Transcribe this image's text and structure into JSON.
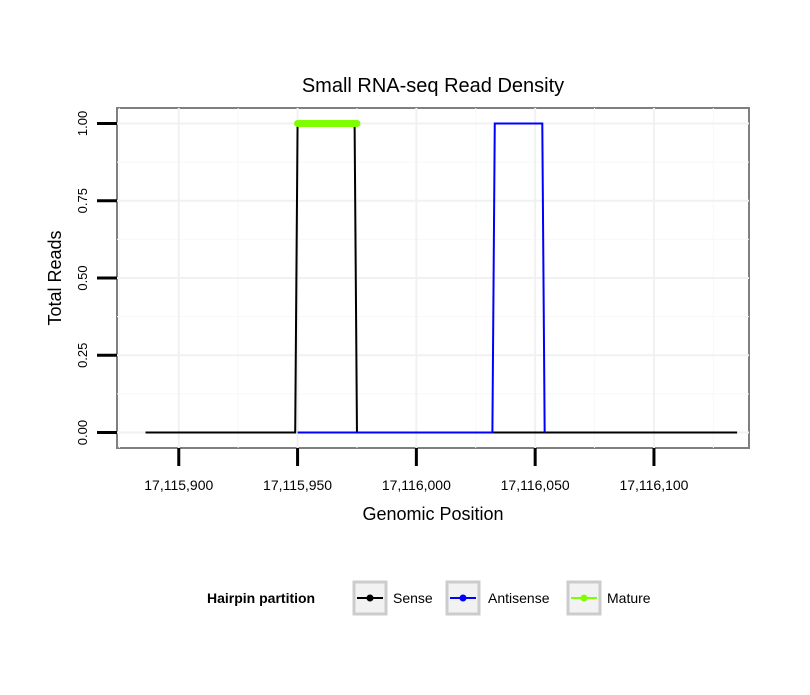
{
  "chart_data": {
    "type": "line",
    "title": "Small RNA-seq Read Density",
    "xlabel": "Genomic Position",
    "ylabel": "Total Reads",
    "xlim": [
      17115874,
      17116140
    ],
    "ylim": [
      -0.05,
      1.05
    ],
    "x_ticks": [
      17115900,
      17115950,
      17116000,
      17116050,
      17116100
    ],
    "x_tick_labels": [
      "17,115,900",
      "17,115,950",
      "17,116,000",
      "17,116,050",
      "17,116,100"
    ],
    "y_ticks": [
      0,
      0.25,
      0.5,
      0.75,
      1
    ],
    "y_tick_labels": [
      "0.00",
      "0.25",
      "0.50",
      "0.75",
      "1.00"
    ],
    "grid": true,
    "legend": {
      "title": "Hairpin partition",
      "position": "bottom",
      "entries": [
        "Sense",
        "Antisense",
        "Mature"
      ]
    },
    "series": [
      {
        "name": "Sense",
        "color": "#000000",
        "x": [
          17115886,
          17115949,
          17115950,
          17115974,
          17115975,
          17116135
        ],
        "y": [
          0,
          0,
          1,
          1,
          0,
          0
        ]
      },
      {
        "name": "Antisense",
        "color": "#0000ff",
        "x": [
          17115950,
          17115975,
          17116032,
          17116033,
          17116053,
          17116054
        ],
        "y": [
          0,
          0,
          0,
          1,
          1,
          0
        ]
      },
      {
        "name": "Mature",
        "color": "#7fff00",
        "x": [
          17115950,
          17115975
        ],
        "y": [
          1,
          1
        ]
      }
    ]
  }
}
